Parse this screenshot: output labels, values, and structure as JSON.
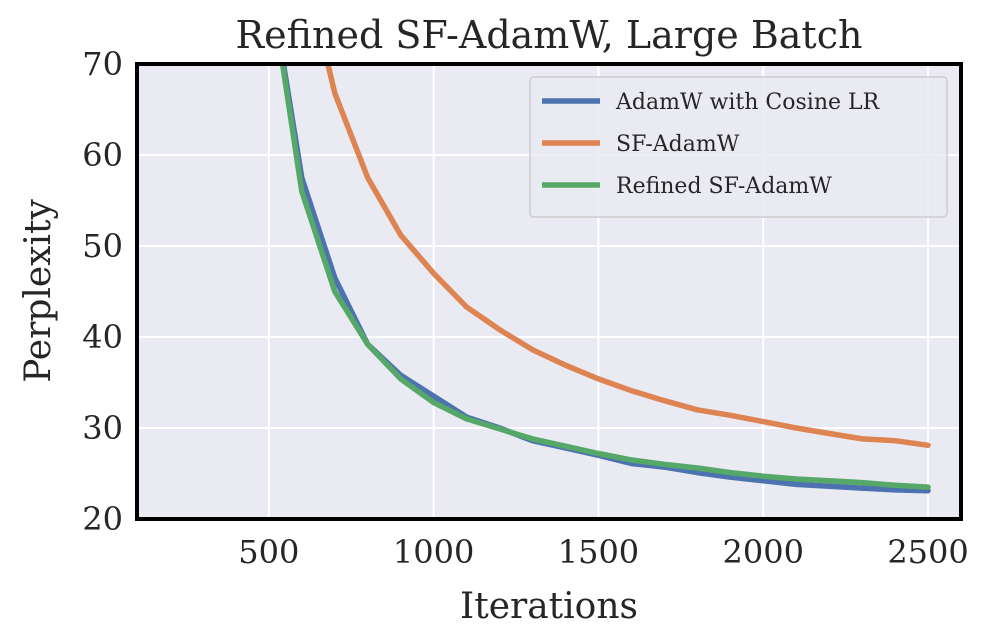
{
  "chart_data": {
    "type": "line",
    "title": "Refined SF-AdamW, Large Batch",
    "xlabel": "Iterations",
    "ylabel": "Perplexity",
    "xlim": [
      100,
      2600
    ],
    "ylim": [
      20,
      70
    ],
    "xticks": [
      500,
      1000,
      1500,
      2000,
      2500
    ],
    "yticks": [
      20,
      30,
      40,
      50,
      60,
      70
    ],
    "grid": true,
    "legend_position": "top-right",
    "background_color": "#eaeaf2",
    "series": [
      {
        "name": "AdamW with Cosine LR",
        "color": "#4c72b0",
        "x": [
          500,
          600,
          700,
          800,
          900,
          1000,
          1100,
          1200,
          1300,
          1400,
          1500,
          1600,
          1700,
          1800,
          1900,
          2000,
          2100,
          2200,
          2300,
          2400,
          2500
        ],
        "y": [
          80.0,
          57.5,
          46.5,
          39.2,
          35.8,
          33.5,
          31.2,
          30.0,
          28.6,
          27.8,
          27.0,
          26.1,
          25.7,
          25.1,
          24.6,
          24.2,
          23.8,
          23.6,
          23.4,
          23.2,
          23.1
        ]
      },
      {
        "name": "SF-AdamW",
        "color": "#dd8452",
        "x": [
          600,
          700,
          800,
          900,
          1000,
          1100,
          1200,
          1300,
          1400,
          1500,
          1600,
          1700,
          1800,
          1900,
          2000,
          2100,
          2200,
          2300,
          2400,
          2500
        ],
        "y": [
          82.0,
          66.8,
          57.5,
          51.2,
          47.0,
          43.3,
          40.8,
          38.6,
          36.9,
          35.4,
          34.1,
          33.0,
          32.0,
          31.4,
          30.7,
          30.0,
          29.4,
          28.8,
          28.6,
          28.1
        ]
      },
      {
        "name": "Refined SF-AdamW",
        "color": "#55a868",
        "x": [
          500,
          600,
          700,
          800,
          900,
          1000,
          1100,
          1200,
          1300,
          1400,
          1500,
          1600,
          1700,
          1800,
          1900,
          2000,
          2100,
          2200,
          2300,
          2400,
          2500
        ],
        "y": [
          80.0,
          56.0,
          45.0,
          39.2,
          35.4,
          32.8,
          31.0,
          29.9,
          28.8,
          28.0,
          27.2,
          26.5,
          26.0,
          25.6,
          25.1,
          24.7,
          24.4,
          24.2,
          24.0,
          23.7,
          23.5
        ]
      }
    ]
  }
}
